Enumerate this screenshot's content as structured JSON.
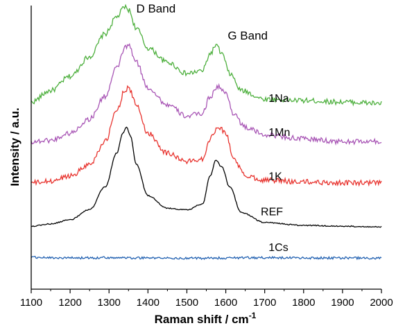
{
  "chart_data": {
    "type": "line",
    "xlabel": "Raman shift /  cm",
    "xlabel_superscript": "-1",
    "ylabel": "Intensity / a.u.",
    "xlim": [
      1100,
      2000
    ],
    "ylim": [
      0,
      1
    ],
    "x_ticks": [
      1100,
      1200,
      1300,
      1400,
      1500,
      1600,
      1700,
      1800,
      1900,
      2000
    ],
    "y_ticks_shown": false,
    "grid": false,
    "legend": "none",
    "annotations": [
      {
        "text": "D Band",
        "x": 1345,
        "y": 0.975
      },
      {
        "text": "G Band",
        "x": 1580,
        "y": 0.88
      }
    ],
    "series": [
      {
        "name": "1Na",
        "color": "#4caf3c",
        "label_x": 1710,
        "label_y": 0.66,
        "baseline": 0.655,
        "x": [
          1100,
          1150,
          1200,
          1250,
          1290,
          1320,
          1340,
          1350,
          1370,
          1400,
          1450,
          1500,
          1540,
          1560,
          1575,
          1590,
          1610,
          1640,
          1700,
          1800,
          1900,
          2000
        ],
        "y": [
          0.66,
          0.7,
          0.75,
          0.82,
          0.9,
          0.96,
          0.995,
          0.985,
          0.92,
          0.85,
          0.8,
          0.76,
          0.77,
          0.83,
          0.86,
          0.83,
          0.76,
          0.7,
          0.67,
          0.665,
          0.66,
          0.655
        ]
      },
      {
        "name": "1Mn",
        "color": "#a855b5",
        "label_x": 1710,
        "label_y": 0.54,
        "baseline": 0.52,
        "x": [
          1100,
          1150,
          1200,
          1250,
          1290,
          1320,
          1340,
          1350,
          1370,
          1400,
          1450,
          1500,
          1540,
          1560,
          1580,
          1600,
          1620,
          1650,
          1700,
          1800,
          1900,
          2000
        ],
        "y": [
          0.52,
          0.525,
          0.55,
          0.6,
          0.68,
          0.78,
          0.85,
          0.86,
          0.8,
          0.71,
          0.65,
          0.61,
          0.62,
          0.68,
          0.715,
          0.69,
          0.62,
          0.57,
          0.545,
          0.53,
          0.52,
          0.52
        ]
      },
      {
        "name": "1K",
        "color": "#e8332e",
        "label_x": 1710,
        "label_y": 0.385,
        "baseline": 0.375,
        "x": [
          1100,
          1150,
          1200,
          1250,
          1290,
          1320,
          1340,
          1350,
          1370,
          1400,
          1450,
          1500,
          1540,
          1560,
          1580,
          1600,
          1620,
          1650,
          1700,
          1800,
          1900,
          2000
        ],
        "y": [
          0.375,
          0.38,
          0.4,
          0.44,
          0.52,
          0.63,
          0.7,
          0.71,
          0.65,
          0.55,
          0.48,
          0.45,
          0.46,
          0.53,
          0.575,
          0.55,
          0.46,
          0.4,
          0.385,
          0.378,
          0.375,
          0.375
        ]
      },
      {
        "name": "REF",
        "color": "#000000",
        "label_x": 1690,
        "label_y": 0.26,
        "baseline": 0.22,
        "x": [
          1100,
          1150,
          1200,
          1250,
          1290,
          1320,
          1335,
          1345,
          1355,
          1370,
          1400,
          1450,
          1500,
          1540,
          1560,
          1575,
          1590,
          1610,
          1640,
          1700,
          1800,
          1900,
          2000
        ],
        "y": [
          0.222,
          0.23,
          0.245,
          0.28,
          0.36,
          0.48,
          0.55,
          0.57,
          0.54,
          0.44,
          0.33,
          0.285,
          0.28,
          0.3,
          0.4,
          0.455,
          0.43,
          0.36,
          0.27,
          0.235,
          0.225,
          0.222,
          0.22
        ]
      },
      {
        "name": "1Cs",
        "color": "#1f5fb0",
        "label_x": 1710,
        "label_y": 0.135,
        "baseline": 0.11,
        "x": [
          1100,
          1200,
          1300,
          1400,
          1500,
          1600,
          1700,
          1800,
          1900,
          2000
        ],
        "y": [
          0.112,
          0.11,
          0.111,
          0.11,
          0.109,
          0.11,
          0.111,
          0.11,
          0.11,
          0.109
        ]
      }
    ]
  }
}
